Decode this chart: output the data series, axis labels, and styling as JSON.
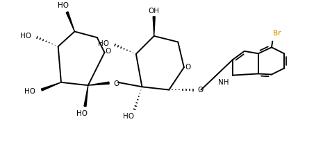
{
  "bg_color": "#ffffff",
  "line_color": "#000000",
  "br_color": "#b8860b",
  "figsize": [
    4.65,
    2.41
  ],
  "dpi": 100,
  "xlim": [
    0,
    10
  ],
  "ylim": [
    0,
    5.5
  ]
}
